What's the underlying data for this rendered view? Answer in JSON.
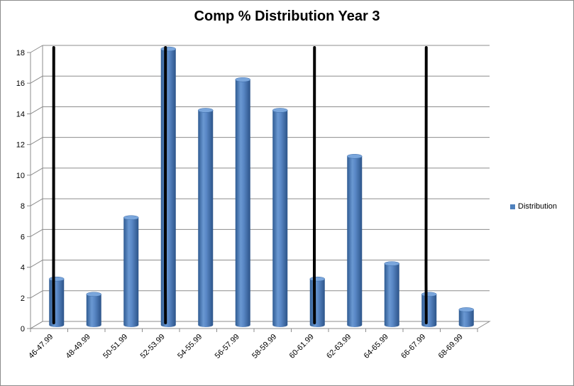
{
  "chart_data": {
    "type": "bar",
    "title": "Comp % Distribution Year 3",
    "xlabel": "",
    "ylabel": "",
    "categories": [
      "46-47.99",
      "48-49.99",
      "50-51.99",
      "52-53.99",
      "54-55.99",
      "56-57.99",
      "58-59.99",
      "60-61.99",
      "62-63.99",
      "64-65.99",
      "66-67.99",
      "68-69.99"
    ],
    "series": [
      {
        "name": "Distribution",
        "values": [
          3,
          2,
          7,
          18,
          14,
          16,
          14,
          3,
          11,
          4,
          2,
          1
        ]
      }
    ],
    "ylim": [
      0,
      18
    ],
    "yticks": [
      0,
      2,
      4,
      6,
      8,
      10,
      12,
      14,
      16,
      18
    ],
    "grid": true,
    "legend": "right",
    "bar_color": "#4f81bd",
    "annotations": {
      "description": "Hand-drawn vertical black lines",
      "category_positions": [
        "46-47.99",
        "52-53.99",
        "60-61.99",
        "66-67.99"
      ],
      "color": "#000000"
    }
  }
}
